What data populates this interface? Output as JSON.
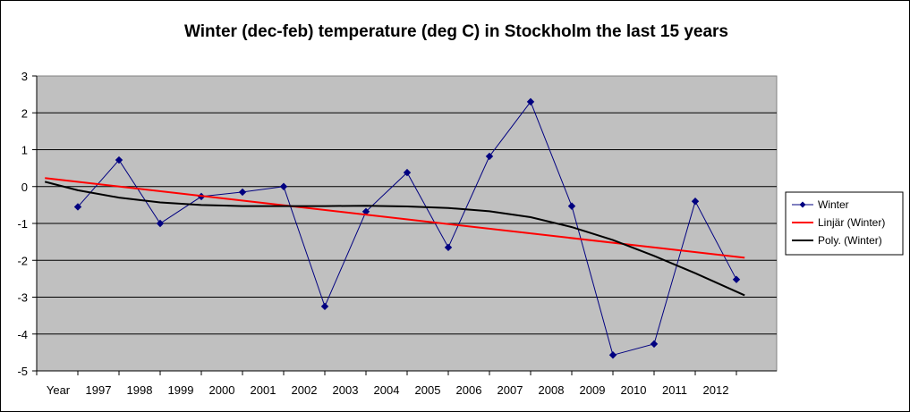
{
  "chart_data": {
    "type": "line",
    "title": "Winter (dec-feb) temperature (deg C) in Stockholm the last 15 years",
    "categories": [
      "Year",
      "1997",
      "1998",
      "1999",
      "2000",
      "2001",
      "2002",
      "2003",
      "2004",
      "2005",
      "2006",
      "2007",
      "2008",
      "2009",
      "2010",
      "2011",
      "2012"
    ],
    "ylim": [
      -5,
      3
    ],
    "yticks": [
      3,
      2,
      1,
      0,
      -1,
      -2,
      -3,
      -4,
      -5
    ],
    "grid": true,
    "legend_position": "right",
    "series": [
      {
        "name": "Winter",
        "color": "#000080",
        "marker": "diamond",
        "x": [
          1,
          2,
          3,
          4,
          5,
          6,
          7,
          8,
          9,
          10,
          11,
          12,
          13,
          14,
          15,
          16,
          17
        ],
        "values": [
          -0.55,
          0.72,
          -1.0,
          -0.27,
          -0.15,
          0.0,
          -3.25,
          -0.68,
          0.38,
          -1.65,
          0.82,
          2.3,
          -0.53,
          -4.57,
          -4.27,
          -0.4,
          -2.52
        ]
      },
      {
        "name": "Linjär (Winter)",
        "color": "#ff0000",
        "x": [
          0.2,
          17.2
        ],
        "values": [
          0.23,
          -1.93
        ]
      },
      {
        "name": "Poly. (Winter)",
        "color": "#000000",
        "x": [
          0.2,
          1,
          2,
          3,
          4,
          5,
          6,
          7,
          8,
          9,
          10,
          11,
          12,
          13,
          14,
          15,
          16,
          17.2
        ],
        "values": [
          0.13,
          -0.1,
          -0.3,
          -0.43,
          -0.5,
          -0.53,
          -0.53,
          -0.53,
          -0.52,
          -0.54,
          -0.58,
          -0.67,
          -0.83,
          -1.1,
          -1.45,
          -1.88,
          -2.35,
          -2.95
        ]
      }
    ]
  }
}
